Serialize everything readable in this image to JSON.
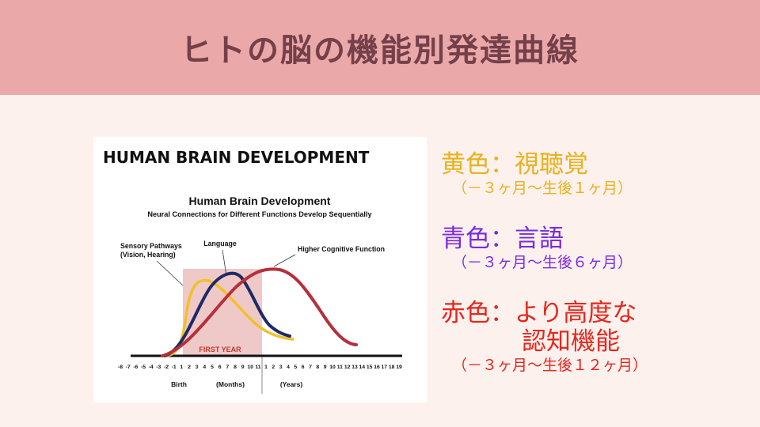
{
  "slide": {
    "title": "ヒトの脳の機能別発達曲線"
  },
  "colors": {
    "header_bg": "#eba8a8",
    "title_text": "#74404a",
    "background": "#fdf1ee",
    "yellow": "#e8b21b",
    "blue": "#7b2be0",
    "red": "#e8261c"
  },
  "legend": {
    "yellow_title": "黄色：視聴覚",
    "yellow_period": "（－３ヶ月～生後１ヶ月）",
    "blue_title": "青色：言語",
    "blue_period": "（－３ヶ月～生後６ヶ月）",
    "red_title": "赤色：より高度な",
    "red_title_line2": "認知機能",
    "red_period": "（－３ヶ月～生後１２ヶ月）"
  },
  "chart_data": {
    "type": "line",
    "banner": "HUMAN BRAIN DEVELOPMENT",
    "title": "Human Brain Development",
    "subtitle": "Neural Connections for Different Functions Develop Sequentially",
    "shaded_region_label": "FIRST YEAR",
    "x_ticks_months": [
      "-8",
      "-7",
      "-6",
      "-5",
      "-4",
      "-3",
      "-2",
      "-1",
      "1",
      "2",
      "3",
      "4",
      "5",
      "6",
      "7",
      "8",
      "9",
      "10",
      "11"
    ],
    "x_ticks_years": [
      "1",
      "2",
      "3",
      "4",
      "5",
      "6",
      "7",
      "8",
      "9",
      "10",
      "11",
      "12",
      "13",
      "14",
      "15",
      "16",
      "17",
      "18",
      "19"
    ],
    "x_captions": [
      "Birth",
      "(Months)",
      "(Years)"
    ],
    "series": [
      {
        "name": "Sensory Pathways (Vision, Hearing)",
        "color": "#f1c02c",
        "points": [
          [
            "-3",
            0.0
          ],
          [
            "-1",
            0.2
          ],
          [
            "1",
            0.55
          ],
          [
            "2",
            0.82
          ],
          [
            "4",
            0.95
          ],
          [
            "6",
            0.9
          ],
          [
            "8",
            0.78
          ],
          [
            "10",
            0.6
          ],
          [
            "11",
            0.48
          ],
          [
            "2y",
            0.3
          ],
          [
            "4y",
            0.16
          ],
          [
            "6y",
            0.12
          ]
        ]
      },
      {
        "name": "Language",
        "color": "#1f2a66",
        "points": [
          [
            "-3",
            0.0
          ],
          [
            "1",
            0.2
          ],
          [
            "4",
            0.55
          ],
          [
            "7",
            0.9
          ],
          [
            "9",
            1.0
          ],
          [
            "11",
            0.92
          ],
          [
            "2y",
            0.65
          ],
          [
            "4y",
            0.3
          ],
          [
            "6y",
            0.16
          ]
        ]
      },
      {
        "name": "Higher Cognitive Function",
        "color": "#b5303a",
        "points": [
          [
            "-3",
            0.0
          ],
          [
            "1",
            0.12
          ],
          [
            "6",
            0.55
          ],
          [
            "11",
            0.92
          ],
          [
            "1y",
            1.08
          ],
          [
            "4y",
            1.1
          ],
          [
            "7y",
            0.92
          ],
          [
            "10y",
            0.55
          ],
          [
            "13y",
            0.2
          ],
          [
            "15y",
            0.1
          ]
        ]
      }
    ]
  }
}
